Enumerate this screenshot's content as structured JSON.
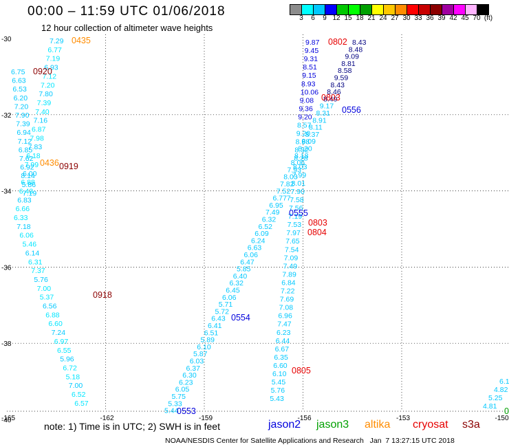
{
  "header": {
    "title": "00:00 – 11:59 UTC 01/06/2018",
    "subtitle": "12 hour collection of altimeter wave heights"
  },
  "scale": {
    "colors": [
      "#8c8c8c",
      "#00ffff",
      "#00c8ff",
      "#0000ff",
      "#00c800",
      "#00ff00",
      "#00a000",
      "#ffff00",
      "#ffc800",
      "#ff8c00",
      "#ff0000",
      "#c80000",
      "#8b0000",
      "#a000a0",
      "#ff00ff",
      "#ffb4ff",
      "#000000"
    ],
    "labels": [
      "3",
      "6",
      "9",
      "12",
      "15",
      "18",
      "21",
      "24",
      "27",
      "30",
      "33",
      "36",
      "39",
      "42",
      "45",
      "70",
      "(ft)"
    ]
  },
  "axes": {
    "lat_labels": [
      "-30",
      "-32",
      "-34",
      "-36",
      "-38",
      "-40"
    ],
    "lon_labels": [
      "-165",
      "-162",
      "-159",
      "-156",
      "-153",
      "-150"
    ]
  },
  "colors": {
    "cyan_label": "#00c8ff",
    "cyan_label_alt": "#00e6ff",
    "jason2": "#0000dc",
    "jason3": "#00a000",
    "altika": "#ff8c00",
    "cryosat": "#e60000",
    "s3a": "#8b0000"
  },
  "tracks": [
    {
      "labels": [
        "7.29",
        "6.77",
        "7.19",
        "6.93",
        "7.12",
        "7.20",
        "7.80",
        "7.39",
        "7.40",
        "7.16",
        "6.87",
        "7.98",
        "7.83",
        "6.18",
        "7.99",
        "6.00",
        "6.88",
        "6.43",
        "6.83",
        "6.66",
        "6.33",
        "7.18",
        "6.06",
        "5.46",
        "6.14",
        "6.31",
        "7.37",
        "5.76",
        "7.00",
        "5.37",
        "6.56",
        "6.88",
        "6.60",
        "7.24",
        "6.97",
        "6.55",
        "5.96",
        "6.72",
        "5.18",
        "7.00",
        "6.52",
        "6.57"
      ]
    },
    {
      "labels": [
        "6.75",
        "6.63",
        "6.53",
        "6.20",
        "7.20",
        "7.90",
        "7.39",
        "6.94",
        "7.12",
        "6.85",
        "7.62",
        "6.92",
        "8.14",
        "5.86",
        "7.19"
      ]
    },
    {
      "labels": [
        "9.87",
        "9.45",
        "9.31",
        "8.51",
        "9.15",
        "8.93",
        "10.06",
        "9.08",
        "9.36",
        "9.20",
        "8.57",
        "9.20",
        "8.98",
        "8.32",
        "8.28",
        "8.03",
        "7.99",
        "8.01",
        "7.90",
        "7.58",
        "7.56",
        "7.19",
        "7.53",
        "7.97",
        "7.65",
        "7.54",
        "7.09",
        "7.49",
        "7.89",
        "6.84",
        "7.22",
        "7.69",
        "7.08",
        "6.96",
        "7.47",
        "6.23",
        "6.44",
        "6.67",
        "6.35",
        "6.60",
        "6.10",
        "5.45",
        "5.76",
        "5.43"
      ]
    },
    {
      "labels": [
        "8.43",
        "8.48",
        "9.09",
        "8.81",
        "8.58",
        "9.59",
        "8.43",
        "8.46",
        "8.49",
        "9.17",
        "8.31",
        "8.91",
        "8.11",
        "8.37",
        "8.09",
        "8.20",
        "8.18",
        "8.06",
        "7.93",
        "8.03",
        "7.82",
        "7.52",
        "6.777",
        "6.95",
        "7.49",
        "6.32",
        "6.52",
        "6.09",
        "6.24",
        "6.63",
        "6.06",
        "6.47",
        "5.85",
        "6.40",
        "6.32",
        "6.45",
        "6.06",
        "5.71",
        "5.72",
        "6.43",
        "6.41",
        "6.51",
        "5.89",
        "6.10",
        "5.87",
        "6.03",
        "6.37",
        "6.30",
        "6.23",
        "6.05",
        "5.75",
        "5.33",
        "5.44"
      ]
    },
    {
      "labels": [
        "6.1",
        "4.82",
        "5.25",
        "4.81"
      ]
    }
  ],
  "pass_ids": [
    {
      "text": "0435",
      "sat": "altika"
    },
    {
      "text": "0920",
      "sat": "s3a"
    },
    {
      "text": "0436",
      "sat": "altika"
    },
    {
      "text": "0919",
      "sat": "s3a"
    },
    {
      "text": "0918",
      "sat": "s3a"
    },
    {
      "text": "0802",
      "sat": "cryosat"
    },
    {
      "text": "0803",
      "sat": "cryosat"
    },
    {
      "text": "0556",
      "sat": "jason2"
    },
    {
      "text": "0555",
      "sat": "jason2"
    },
    {
      "text": "0803",
      "sat": "cryosat"
    },
    {
      "text": "0804",
      "sat": "cryosat"
    },
    {
      "text": "0554",
      "sat": "jason2"
    },
    {
      "text": "0805",
      "sat": "cryosat"
    },
    {
      "text": "0553",
      "sat": "jason2"
    },
    {
      "text": "0",
      "sat": "jason3"
    }
  ],
  "footer": {
    "note": "note: 1) Time is in UTC; 2) SWH is in feet",
    "satellites": [
      "jason2",
      "jason3",
      "altika",
      "cryosat",
      "s3a"
    ],
    "credit": "NOAA/NESDIS Center for Satellite Applications and Research   Jan  7 13:27:15 UTC 2018"
  }
}
